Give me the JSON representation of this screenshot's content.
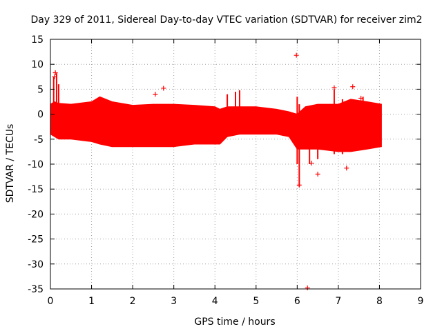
{
  "chart_data": {
    "type": "scatter",
    "title": "Day 329 of 2011, Sidereal Day-to-day VTEC variation (SDTVAR) for receiver zim2",
    "xlabel": "GPS time / hours",
    "ylabel": "SDTVAR / TECUs",
    "xlim": [
      0,
      9
    ],
    "ylim": [
      -35,
      15
    ],
    "xticks": [
      0,
      1,
      2,
      3,
      4,
      5,
      6,
      7,
      8,
      9
    ],
    "yticks": [
      15,
      10,
      5,
      0,
      -5,
      -10,
      -15,
      -20,
      -25,
      -30,
      -35
    ],
    "grid": true,
    "series_color": "#ff0000",
    "band": {
      "name": "SDTVAR",
      "x": [
        0.0,
        0.1,
        0.2,
        0.5,
        1.0,
        1.2,
        1.5,
        2.0,
        2.5,
        3.0,
        3.5,
        4.0,
        4.12,
        4.3,
        4.6,
        5.0,
        5.5,
        5.8,
        6.0,
        6.2,
        6.5,
        7.0,
        7.3,
        7.7,
        8.05
      ],
      "upper": [
        2.0,
        2.5,
        2.2,
        2.0,
        2.5,
        3.5,
        2.5,
        1.8,
        2.0,
        2.0,
        1.8,
        1.5,
        1.0,
        1.5,
        1.5,
        1.5,
        1.0,
        0.5,
        0.0,
        1.5,
        2.0,
        2.0,
        3.0,
        2.5,
        2.0
      ],
      "lower": [
        -4.0,
        -4.5,
        -5.0,
        -5.0,
        -5.5,
        -6.0,
        -6.5,
        -6.5,
        -6.5,
        -6.5,
        -6.0,
        -6.0,
        -6.0,
        -4.5,
        -4.0,
        -4.0,
        -4.0,
        -4.5,
        -7.0,
        -7.0,
        -7.0,
        -7.5,
        -7.5,
        -7.0,
        -6.5
      ]
    },
    "spikes": [
      {
        "x": 0.08,
        "y_min": 0,
        "y_max": 7.5
      },
      {
        "x": 0.15,
        "y_min": 0,
        "y_max": 8.2
      },
      {
        "x": 0.2,
        "y_min": 0,
        "y_max": 6.0
      },
      {
        "x": 4.3,
        "y_min": -1,
        "y_max": 4.0
      },
      {
        "x": 4.5,
        "y_min": -1,
        "y_max": 4.5
      },
      {
        "x": 4.6,
        "y_min": -1,
        "y_max": 4.8
      },
      {
        "x": 6.0,
        "y_min": -10,
        "y_max": 3.5
      },
      {
        "x": 6.05,
        "y_min": -14.5,
        "y_max": 2.0
      },
      {
        "x": 6.3,
        "y_min": -10,
        "y_max": 1.0
      },
      {
        "x": 6.5,
        "y_min": -9,
        "y_max": 1.5
      },
      {
        "x": 6.9,
        "y_min": -8,
        "y_max": 5.0
      },
      {
        "x": 7.1,
        "y_min": -8,
        "y_max": 3.0
      },
      {
        "x": 7.6,
        "y_min": -7,
        "y_max": 3.5
      }
    ],
    "outliers": [
      {
        "x": 0.1,
        "y": 7.5
      },
      {
        "x": 0.12,
        "y": 8.3
      },
      {
        "x": 2.55,
        "y": 4.0
      },
      {
        "x": 2.75,
        "y": 5.2
      },
      {
        "x": 5.98,
        "y": 11.8
      },
      {
        "x": 6.05,
        "y": -14.2
      },
      {
        "x": 6.25,
        "y": -34.8
      },
      {
        "x": 6.35,
        "y": -9.8
      },
      {
        "x": 6.5,
        "y": -12.0
      },
      {
        "x": 6.9,
        "y": 5.3
      },
      {
        "x": 7.2,
        "y": -10.8
      },
      {
        "x": 7.35,
        "y": 5.5
      },
      {
        "x": 7.55,
        "y": 3.2
      }
    ]
  }
}
